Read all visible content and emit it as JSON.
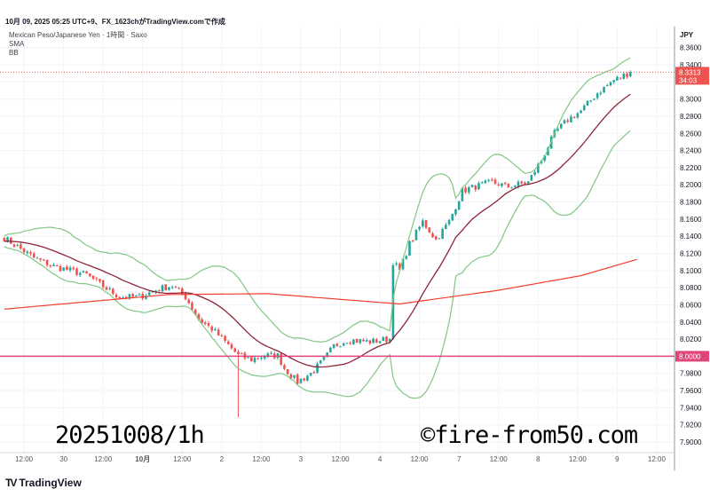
{
  "header": {
    "snapshot_info": "10月 09, 2025 05:25 UTC+9、FX_1623chがTradingView.comで作成"
  },
  "legend": {
    "symbol": "Mexican Peso/Japanese Yen · 1時間 · Saxo",
    "sma": "SMA",
    "bb": "BB"
  },
  "axis": {
    "currency": "JPY"
  },
  "watermarks": {
    "left": "20251008/1h",
    "right": "©fire-from50.com"
  },
  "footer": {
    "brand": "TradingView",
    "brand_mark": "TV"
  },
  "price_label": {
    "price": "8.3313",
    "countdown": "34:03"
  },
  "colors": {
    "up": "#26a69a",
    "down": "#ef5350",
    "bb": "#81c784",
    "basis": "#8e2436",
    "sma": "#f23d2d",
    "hline": "#e0457b",
    "grid": "#f0f3fa"
  },
  "chart_data": {
    "type": "candlestick",
    "symbol": "MXNJPY",
    "interval": "1h",
    "ylim": [
      7.8876,
      8.3845
    ],
    "xlim_hours": [
      -1.3,
      203.4
    ],
    "price_ticks": {
      "start": 7.9,
      "end": 8.36,
      "step": 0.02
    },
    "time_ticks": [
      {
        "h": 6,
        "label": "12:00"
      },
      {
        "h": 18,
        "label": "30"
      },
      {
        "h": 30,
        "label": "12:00"
      },
      {
        "h": 42,
        "label": "10月",
        "bold": true
      },
      {
        "h": 54,
        "label": "12:00"
      },
      {
        "h": 66,
        "label": "2"
      },
      {
        "h": 78,
        "label": "12:00"
      },
      {
        "h": 90,
        "label": "3"
      },
      {
        "h": 102,
        "label": "12:00"
      },
      {
        "h": 114,
        "label": "4"
      },
      {
        "h": 126,
        "label": "12:00"
      },
      {
        "h": 138,
        "label": "7"
      },
      {
        "h": 150,
        "label": "12:00"
      },
      {
        "h": 162,
        "label": "8"
      },
      {
        "h": 174,
        "label": "12:00"
      },
      {
        "h": 186,
        "label": "9"
      },
      {
        "h": 198,
        "label": "12:00"
      }
    ],
    "close_keypoints": [
      [
        0,
        8.138
      ],
      [
        9,
        8.115
      ],
      [
        15,
        8.105
      ],
      [
        20,
        8.1
      ],
      [
        25,
        8.095
      ],
      [
        31,
        8.079
      ],
      [
        35,
        8.069
      ],
      [
        41,
        8.069
      ],
      [
        47,
        8.079
      ],
      [
        51,
        8.082
      ],
      [
        55,
        8.069
      ],
      [
        59,
        8.043
      ],
      [
        63,
        8.032
      ],
      [
        67,
        8.017
      ],
      [
        71,
        8.001
      ],
      [
        75,
        7.996
      ],
      [
        79,
        8.001
      ],
      [
        83,
        8.001
      ],
      [
        85,
        7.986
      ],
      [
        89,
        7.97
      ],
      [
        93,
        7.98
      ],
      [
        97,
        7.996
      ],
      [
        100,
        8.012
      ],
      [
        104,
        8.019
      ],
      [
        111,
        8.017
      ],
      [
        117,
        8.02
      ],
      [
        118,
        8.11
      ],
      [
        120,
        8.1
      ],
      [
        123,
        8.131
      ],
      [
        127,
        8.157
      ],
      [
        131,
        8.136
      ],
      [
        135,
        8.157
      ],
      [
        139,
        8.193
      ],
      [
        143,
        8.198
      ],
      [
        148,
        8.203
      ],
      [
        153,
        8.198
      ],
      [
        159,
        8.203
      ],
      [
        163,
        8.229
      ],
      [
        167,
        8.26
      ],
      [
        171,
        8.276
      ],
      [
        175,
        8.286
      ],
      [
        180,
        8.307
      ],
      [
        185,
        8.322
      ],
      [
        190,
        8.3313
      ]
    ],
    "spike_low": {
      "h": 71,
      "low": 7.929
    },
    "sma_long_keypoints": [
      [
        0,
        8.055
      ],
      [
        50,
        8.072
      ],
      [
        80,
        8.073
      ],
      [
        120,
        8.061
      ],
      [
        150,
        8.077
      ],
      [
        175,
        8.094
      ],
      [
        192,
        8.113
      ]
    ],
    "bb": {
      "period": 20,
      "stddev": 2
    },
    "horizontal_line": 8.0,
    "last_price": 8.3313
  }
}
